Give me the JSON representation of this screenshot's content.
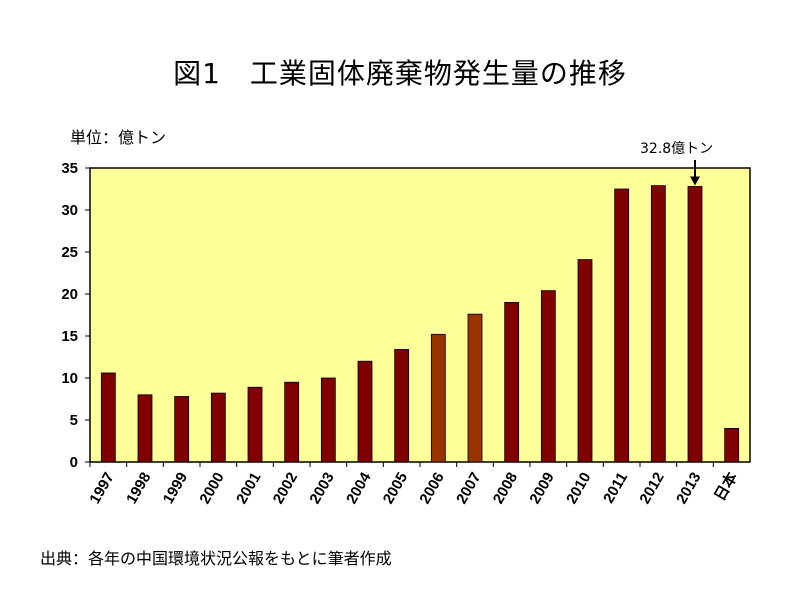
{
  "title": "図1　工業固体廃棄物発生量の推移",
  "unit_label": "単位：億トン",
  "annotation": "32.8億トン",
  "source": "出典：各年の中国環境状況公報をもとに筆者作成",
  "colors": {
    "plot_bg": "#FFFF99",
    "bar_dark": "#800000",
    "bar_brown": "#993300",
    "border": "#000000"
  },
  "chart_data": {
    "type": "bar",
    "title": "図1　工業固体廃棄物発生量の推移",
    "ylabel": "単位：億トン",
    "ylim": [
      0,
      35
    ],
    "yticks": [
      0,
      5,
      10,
      15,
      20,
      25,
      30,
      35
    ],
    "categories": [
      "1997",
      "1998",
      "1999",
      "2000",
      "2001",
      "2002",
      "2003",
      "2004",
      "2005",
      "2006",
      "2007",
      "2008",
      "2009",
      "2010",
      "2011",
      "2012",
      "2013",
      "日本"
    ],
    "values": [
      10.6,
      8.0,
      7.8,
      8.2,
      8.9,
      9.5,
      10.0,
      12.0,
      13.4,
      15.2,
      17.6,
      19.0,
      20.4,
      24.1,
      32.5,
      32.9,
      32.8,
      4.0
    ],
    "bar_colors": [
      "#800000",
      "#800000",
      "#800000",
      "#800000",
      "#800000",
      "#800000",
      "#800000",
      "#800000",
      "#800000",
      "#993300",
      "#993300",
      "#800000",
      "#800000",
      "#800000",
      "#800000",
      "#800000",
      "#800000",
      "#800000"
    ],
    "annotation": {
      "category": "2013",
      "text": "32.8億トン"
    },
    "grid": false,
    "legend": "none"
  }
}
